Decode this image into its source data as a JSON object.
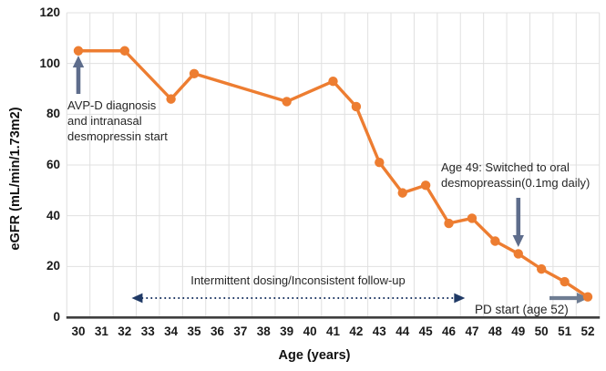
{
  "chart_data": {
    "type": "line",
    "title": "",
    "xlabel": "Age (years)",
    "ylabel": "eGFR (mL/min/1.73m2)",
    "x": [
      30,
      32,
      34,
      35,
      39,
      41,
      42,
      43,
      44,
      45,
      46,
      47,
      48,
      49,
      50,
      51,
      52
    ],
    "values": [
      105,
      105,
      86,
      96,
      85,
      93,
      83,
      61,
      49,
      52,
      37,
      39,
      30,
      25,
      19,
      14,
      8
    ],
    "x_ticks": [
      30,
      31,
      32,
      33,
      34,
      35,
      36,
      37,
      38,
      39,
      40,
      41,
      42,
      43,
      44,
      45,
      46,
      47,
      48,
      49,
      50,
      51,
      52
    ],
    "y_ticks": [
      0,
      20,
      40,
      60,
      80,
      100,
      120
    ],
    "xlim": [
      30,
      52
    ],
    "ylim": [
      0,
      120
    ],
    "grid": "both",
    "legend": "none",
    "line_color": "#ED7D31",
    "marker": "circle",
    "gridline_color": "#e0e0e0",
    "axis_line_color": "#3f3f3f"
  },
  "annotations": {
    "diagnosis": {
      "text": "AVP-D diagnosis\nand intranasal\ndesmopressin start",
      "arrow": "up",
      "arrow_at_age": 30,
      "arrow_color": "#5E6D8C"
    },
    "switch_oral": {
      "text": "Age 49: Switched to oral\ndesmopreassin(0.1mg daily)",
      "arrow": "down",
      "arrow_at_age": 49,
      "arrow_color": "#5E6D8C"
    },
    "intermittent": {
      "text": "Intermittent dosing/Inconsistent follow-up",
      "arrow": "dotted-double-headed",
      "from_age": 32.3,
      "to_age": 46.7,
      "arrow_color": "#203A66"
    },
    "pd_start": {
      "text": "PD start (age 52)",
      "arrow": "right",
      "to_age": 52,
      "arrow_color": "#6F7D93"
    }
  }
}
